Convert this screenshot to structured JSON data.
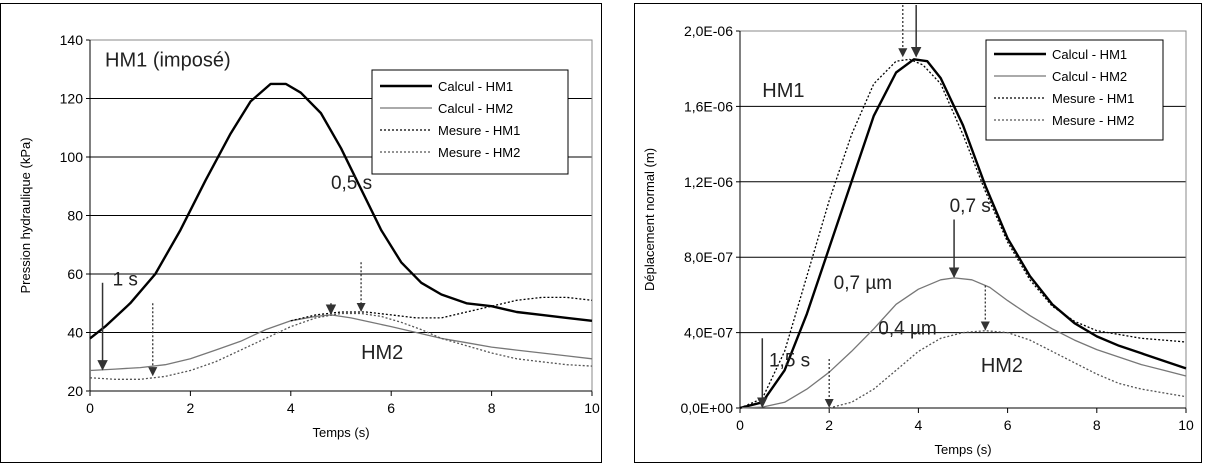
{
  "chart_data": [
    {
      "type": "line",
      "ylabel": "Pression hydraulique (kPa)",
      "xlabel": "Temps (s)",
      "xlim": [
        0,
        10
      ],
      "ylim": [
        20,
        140
      ],
      "xticks": [
        0,
        2,
        4,
        6,
        8,
        10
      ],
      "yticks": [
        20,
        40,
        60,
        80,
        100,
        120,
        140
      ],
      "grid": "horizontal",
      "legend": "top-right",
      "series": [
        {
          "name": "Calcul - HM1",
          "style": "solid-thick",
          "color": "#000000",
          "x": [
            0,
            0.3,
            0.8,
            1.3,
            1.8,
            2.3,
            2.8,
            3.2,
            3.6,
            3.9,
            4.2,
            4.6,
            5.0,
            5.4,
            5.8,
            6.2,
            6.6,
            7.0,
            7.5,
            8.0,
            8.5,
            9.0,
            9.5,
            10
          ],
          "y": [
            38,
            42,
            50,
            60,
            75,
            92,
            108,
            119,
            125,
            125,
            122,
            115,
            103,
            89,
            75,
            64,
            57,
            53,
            50,
            49,
            47,
            46,
            45,
            44
          ]
        },
        {
          "name": "Calcul - HM2",
          "style": "solid-thin",
          "color": "#777777",
          "x": [
            0,
            0.5,
            1,
            1.5,
            2,
            2.5,
            3,
            3.5,
            4,
            4.5,
            4.8,
            5.2,
            5.6,
            6,
            6.5,
            7,
            7.5,
            8,
            8.5,
            9,
            9.5,
            10
          ],
          "y": [
            27,
            27.5,
            28,
            29,
            31,
            34,
            37,
            41,
            44,
            45.5,
            46,
            45,
            43.5,
            42,
            40,
            38,
            36.5,
            35,
            34,
            33,
            32,
            31
          ]
        },
        {
          "name": "Mesure - HM1",
          "style": "dotted",
          "color": "#000000",
          "x": [
            4.0,
            4.5,
            5.0,
            5.5,
            6.0,
            6.5,
            7.0,
            7.5,
            8.0,
            8.5,
            9.0,
            9.5,
            10
          ],
          "y": [
            44,
            46,
            47,
            47,
            46,
            45,
            45,
            47,
            49,
            51,
            52,
            52,
            51
          ]
        },
        {
          "name": "Mesure - HM2",
          "style": "dotted",
          "color": "#555555",
          "x": [
            0,
            0.5,
            1,
            1.5,
            2,
            2.5,
            3,
            3.5,
            4,
            4.5,
            5,
            5.4,
            5.8,
            6.2,
            6.6,
            7,
            7.5,
            8,
            8.5,
            9,
            9.5,
            10
          ],
          "y": [
            24.5,
            24,
            24,
            25,
            27,
            30,
            34,
            38,
            42,
            45,
            46.5,
            46.5,
            45.5,
            43.5,
            41,
            38,
            35.5,
            33,
            31,
            30,
            29,
            28.5
          ]
        }
      ],
      "annotations": [
        {
          "text": "HM1 (imposé)",
          "x": 0.3,
          "y": 131,
          "size": 20
        },
        {
          "text": "0,5 s",
          "x": 4.8,
          "y": 89,
          "size": 19
        },
        {
          "text": "1 s",
          "x": 0.45,
          "y": 56,
          "size": 19
        },
        {
          "text": "HM2",
          "x": 5.4,
          "y": 31,
          "size": 20
        }
      ],
      "arrows": [
        {
          "x": 0.25,
          "y_from": 57,
          "y_to": 27,
          "style": "solid"
        },
        {
          "x": 1.25,
          "y_from": 50,
          "y_to": 25,
          "style": "dotted"
        },
        {
          "x": 4.8,
          "y_from": 50,
          "y_to": 46,
          "style": "solid"
        },
        {
          "x": 5.4,
          "y_from": 64,
          "y_to": 47,
          "style": "dotted"
        }
      ]
    },
    {
      "type": "line",
      "ylabel": "Déplacement normal (m)",
      "xlabel": "Temps (s)",
      "xlim": [
        0,
        10
      ],
      "ylim": [
        0,
        2e-06
      ],
      "xticks": [
        0,
        2,
        4,
        6,
        8,
        10
      ],
      "yticks": [
        0,
        4e-07,
        8e-07,
        1.2e-06,
        1.6e-06,
        2e-06
      ],
      "ytick_labels": [
        "0,0E+00",
        "4,0E-07",
        "8,0E-07",
        "1,2E-06",
        "1,6E-06",
        "2,0E-06"
      ],
      "grid": "horizontal",
      "legend": "top-right",
      "series": [
        {
          "name": "Calcul - HM1",
          "style": "solid-thick",
          "color": "#000000",
          "x": [
            0,
            0.5,
            1,
            1.5,
            2,
            2.5,
            3,
            3.5,
            3.9,
            4.2,
            4.5,
            5,
            5.5,
            6,
            6.5,
            7,
            7.5,
            8,
            8.5,
            9,
            9.5,
            10
          ],
          "y": [
            0,
            3e-08,
            2e-07,
            5e-07,
            8.5e-07,
            1.2e-06,
            1.55e-06,
            1.78e-06,
            1.85e-06,
            1.84e-06,
            1.75e-06,
            1.5e-06,
            1.18e-06,
            9e-07,
            7e-07,
            5.5e-07,
            4.5e-07,
            3.8e-07,
            3.3e-07,
            2.9e-07,
            2.5e-07,
            2.1e-07
          ]
        },
        {
          "name": "Calcul - HM2",
          "style": "solid-thin",
          "color": "#777777",
          "x": [
            0,
            0.5,
            1,
            1.5,
            2,
            2.5,
            3,
            3.5,
            4,
            4.5,
            4.8,
            5.2,
            5.6,
            6,
            6.5,
            7,
            7.5,
            8,
            8.5,
            9,
            9.5,
            10
          ],
          "y": [
            0,
            5e-09,
            3e-08,
            1e-07,
            1.9e-07,
            3e-07,
            4.2e-07,
            5.5e-07,
            6.3e-07,
            6.8e-07,
            6.9e-07,
            6.8e-07,
            6.4e-07,
            5.7e-07,
            4.9e-07,
            4.2e-07,
            3.6e-07,
            3.1e-07,
            2.7e-07,
            2.3e-07,
            2e-07,
            1.7e-07
          ]
        },
        {
          "name": "Mesure - HM1",
          "style": "dotted",
          "color": "#000000",
          "x": [
            0,
            0.5,
            1,
            1.5,
            2,
            2.5,
            3,
            3.5,
            3.8,
            4.1,
            4.5,
            5,
            5.5,
            6,
            6.5,
            7,
            7.5,
            8,
            8.5,
            9,
            9.5,
            10
          ],
          "y": [
            0,
            5e-08,
            3e-07,
            7e-07,
            1.1e-06,
            1.45e-06,
            1.72e-06,
            1.84e-06,
            1.85e-06,
            1.82e-06,
            1.72e-06,
            1.45e-06,
            1.15e-06,
            8.8e-07,
            6.8e-07,
            5.4e-07,
            4.6e-07,
            4.1e-07,
            3.9e-07,
            3.7e-07,
            3.6e-07,
            3.5e-07
          ]
        },
        {
          "name": "Mesure - HM2",
          "style": "dotted",
          "color": "#555555",
          "x": [
            2,
            2.5,
            3,
            3.5,
            4,
            4.5,
            5,
            5.5,
            6,
            6.5,
            7,
            7.5,
            8,
            8.5,
            9,
            9.5,
            10
          ],
          "y": [
            0,
            3e-08,
            1e-07,
            2e-07,
            3e-07,
            3.7e-07,
            4e-07,
            4.1e-07,
            4e-07,
            3.6e-07,
            3e-07,
            2.4e-07,
            1.8e-07,
            1.3e-07,
            1e-07,
            8e-08,
            6e-08
          ]
        }
      ],
      "annotations": [
        {
          "text": "HM1",
          "x": 0.5,
          "y": 1.65e-06,
          "size": 20
        },
        {
          "text": "0,7 s",
          "x": 4.7,
          "y": 1.04e-06,
          "size": 19
        },
        {
          "text": "0,7 µm",
          "x": 2.1,
          "y": 6.3e-07,
          "size": 19
        },
        {
          "text": "0,4 µm",
          "x": 3.1,
          "y": 3.9e-07,
          "size": 19
        },
        {
          "text": "1,5 s",
          "x": 0.65,
          "y": 2.2e-07,
          "size": 19
        },
        {
          "text": "HM2",
          "x": 5.4,
          "y": 1.9e-07,
          "size": 20
        }
      ],
      "arrows": [
        {
          "x": 3.65,
          "y_from": 2.15e-06,
          "y_to": 1.86e-06,
          "style": "dotted"
        },
        {
          "x": 3.95,
          "y_from": 2.15e-06,
          "y_to": 1.86e-06,
          "style": "solid"
        },
        {
          "x": 4.8,
          "y_from": 1e-06,
          "y_to": 6.9e-07,
          "style": "solid"
        },
        {
          "x": 5.5,
          "y_from": 6.5e-07,
          "y_to": 4.1e-07,
          "style": "dotted"
        },
        {
          "x": 0.5,
          "y_from": 3.7e-07,
          "y_to": 0,
          "style": "solid"
        },
        {
          "x": 2.0,
          "y_from": 2.6e-07,
          "y_to": 0,
          "style": "dotted"
        }
      ]
    }
  ]
}
